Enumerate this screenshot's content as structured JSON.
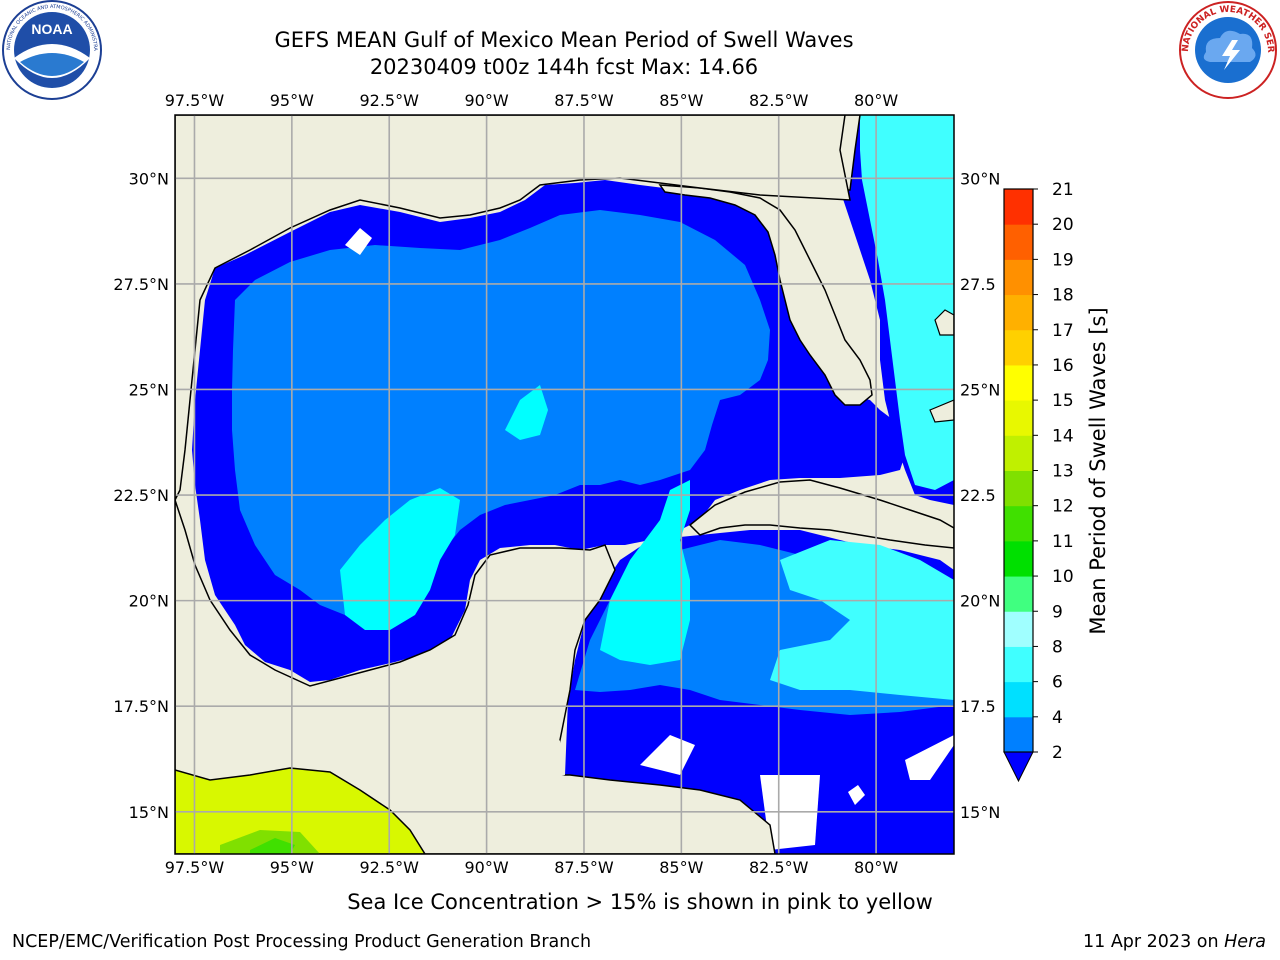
{
  "header": {
    "title_line1": "GEFS MEAN Gulf of Mexico Mean Period of Swell Waves",
    "title_line2": "20230409 t00z 144h fcst   Max: 14.66"
  },
  "logos": {
    "left": "NOAA",
    "left_ring_text": "NATIONAL OCEANIC AND ATMOSPHERIC ADMINISTRATION · U.S. DEPARTMENT OF COMMERCE",
    "right_ring_text": "NATIONAL WEATHER SERVICE"
  },
  "chart_data": {
    "type": "heatmap",
    "variable": "Mean Period of Swell Waves",
    "max_value": 14.66,
    "x_axis": {
      "range": [
        -98.0,
        -78.0
      ],
      "ticks": [
        -97.5,
        -95,
        -92.5,
        -90,
        -87.5,
        -85,
        -82.5,
        -80
      ],
      "tick_labels": [
        "97.5°W",
        "95°W",
        "92.5°W",
        "90°W",
        "87.5°W",
        "85°W",
        "82.5°W",
        "80°W"
      ]
    },
    "y_axis": {
      "range": [
        14.0,
        31.5
      ],
      "ticks": [
        15,
        17.5,
        20,
        22.5,
        25,
        27.5,
        30
      ],
      "tick_labels": [
        "15°N",
        "17.5°N",
        "20°N",
        "22.5°N",
        "25°N",
        "27.5°N",
        "30°N"
      ],
      "right_tick_labels": [
        "15°N",
        "17.5",
        "20°N",
        "22.5",
        "25°N",
        "27.5",
        "30°N"
      ]
    },
    "grid": true,
    "colorbar": {
      "label": "Mean Period of Swell Waves [s]",
      "levels": [
        2,
        4,
        6,
        8,
        9,
        10,
        11,
        12,
        13,
        14,
        15,
        16,
        17,
        18,
        19,
        20,
        21
      ],
      "level_labels": [
        "2",
        "4",
        "6",
        "8",
        "9",
        "10",
        "11",
        "12",
        "13",
        "14",
        "15",
        "16",
        "17",
        "18",
        "19",
        "20",
        "21"
      ],
      "colors": [
        "#0080ff",
        "#00e0ff",
        "#40ffff",
        "#a0ffff",
        "#40ff80",
        "#00e000",
        "#40e000",
        "#80e000",
        "#c0f000",
        "#e8f800",
        "#ffff00",
        "#ffd000",
        "#ffb000",
        "#ff9000",
        "#ff6000",
        "#ff3000"
      ],
      "under_color": "#0000ff"
    },
    "colors": {
      "land": "#eeeedd",
      "gulf_deep": "#0000ff",
      "gulf_mid": "#0080ff",
      "gulf_light": "#00ffff",
      "atlantic": "#40ffff",
      "pacific_ice": "#d8f800"
    }
  },
  "footer": {
    "note": "Sea Ice Concentration > 15% is shown in pink to yellow",
    "left": "NCEP/EMC/Verification Post Processing Product Generation Branch",
    "right_date": "11 Apr 2023 on ",
    "right_host": "Hera"
  }
}
